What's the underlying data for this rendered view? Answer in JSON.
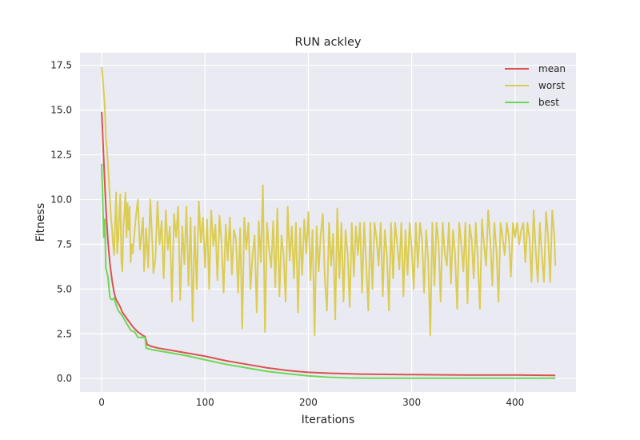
{
  "chart_data": {
    "type": "line",
    "title": "RUN ackley",
    "xlabel": "Iterations",
    "ylabel": "Fitness",
    "xlim": [
      -21,
      459
    ],
    "ylim": [
      -0.75,
      18.2
    ],
    "xticks": [
      0,
      100,
      200,
      300,
      400
    ],
    "yticks": [
      0.0,
      2.5,
      5.0,
      7.5,
      10.0,
      12.5,
      15.0,
      17.5
    ],
    "ytick_labels": [
      "0.0",
      "2.5",
      "5.0",
      "7.5",
      "10.0",
      "12.5",
      "15.0",
      "17.5"
    ],
    "grid": true,
    "legend_position": "top-right",
    "n_points": 440,
    "series": [
      {
        "name": "mean",
        "color": "#d9534f",
        "points": [
          [
            0,
            14.9
          ],
          [
            2,
            12.2
          ],
          [
            4,
            9.6
          ],
          [
            6,
            7.7
          ],
          [
            8,
            6.4
          ],
          [
            10,
            5.5
          ],
          [
            12,
            4.8
          ],
          [
            14,
            4.4
          ],
          [
            16,
            4.2
          ],
          [
            18,
            4.0
          ],
          [
            20,
            3.7
          ],
          [
            25,
            3.3
          ],
          [
            30,
            2.9
          ],
          [
            35,
            2.6
          ],
          [
            40,
            2.4
          ],
          [
            42,
            2.35
          ],
          [
            44,
            1.9
          ],
          [
            48,
            1.8
          ],
          [
            55,
            1.7
          ],
          [
            70,
            1.55
          ],
          [
            80,
            1.45
          ],
          [
            100,
            1.25
          ],
          [
            120,
            1.0
          ],
          [
            140,
            0.8
          ],
          [
            160,
            0.6
          ],
          [
            180,
            0.45
          ],
          [
            200,
            0.35
          ],
          [
            220,
            0.3
          ],
          [
            250,
            0.25
          ],
          [
            300,
            0.22
          ],
          [
            350,
            0.2
          ],
          [
            400,
            0.2
          ],
          [
            439,
            0.18
          ]
        ]
      },
      {
        "name": "worst",
        "color": "#dbcc52",
        "points": [
          [
            0,
            17.4
          ],
          [
            1,
            16.8
          ],
          [
            2,
            16.0
          ],
          [
            3,
            15.2
          ],
          [
            4,
            13.5
          ],
          [
            5,
            12.9
          ],
          [
            6,
            12.0
          ],
          [
            7,
            11.0
          ],
          [
            8,
            10.0
          ],
          [
            9,
            9.0
          ],
          [
            10,
            8.4
          ],
          [
            11,
            7.5
          ],
          [
            12,
            6.9
          ],
          [
            13,
            8.8
          ],
          [
            14,
            10.4
          ],
          [
            15,
            7.0
          ],
          [
            16,
            7.8
          ],
          [
            17,
            9.2
          ],
          [
            18,
            10.3
          ],
          [
            19,
            6.6
          ],
          [
            20,
            6.0
          ],
          [
            21,
            8.5
          ],
          [
            22,
            9.2
          ],
          [
            23,
            10.4
          ],
          [
            24,
            7.9
          ],
          [
            25,
            9.8
          ],
          [
            26,
            8.3
          ],
          [
            27,
            9.6
          ],
          [
            28,
            6.5
          ],
          [
            29,
            7.5
          ],
          [
            30,
            7.0
          ],
          [
            33,
            9.0
          ],
          [
            35,
            10.0
          ],
          [
            37,
            7.2
          ],
          [
            40,
            9.0
          ],
          [
            41,
            6.0
          ],
          [
            43,
            8.4
          ],
          [
            45,
            6.2
          ],
          [
            47,
            10.0
          ],
          [
            49,
            7.6
          ],
          [
            50,
            5.9
          ],
          [
            52,
            6.7
          ],
          [
            54,
            9.9
          ],
          [
            56,
            7.5
          ],
          [
            58,
            8.8
          ],
          [
            60,
            5.6
          ],
          [
            62,
            9.4
          ],
          [
            64,
            7.2
          ],
          [
            66,
            8.5
          ],
          [
            68,
            4.3
          ],
          [
            70,
            9.2
          ],
          [
            72,
            7.9
          ],
          [
            74,
            9.6
          ],
          [
            76,
            4.4
          ],
          [
            78,
            8.5
          ],
          [
            80,
            6.4
          ],
          [
            82,
            9.6
          ],
          [
            84,
            5.2
          ],
          [
            86,
            9.0
          ],
          [
            88,
            3.2
          ],
          [
            90,
            8.5
          ],
          [
            92,
            5.0
          ],
          [
            94,
            9.9
          ],
          [
            96,
            7.6
          ],
          [
            98,
            9.0
          ],
          [
            100,
            6.2
          ],
          [
            102,
            8.9
          ],
          [
            104,
            5.0
          ],
          [
            106,
            9.4
          ],
          [
            108,
            7.4
          ],
          [
            110,
            8.6
          ],
          [
            112,
            5.5
          ],
          [
            114,
            9.1
          ],
          [
            116,
            7.6
          ],
          [
            118,
            4.8
          ],
          [
            120,
            8.6
          ],
          [
            122,
            6.6
          ],
          [
            124,
            9.0
          ],
          [
            126,
            5.8
          ],
          [
            128,
            8.3
          ],
          [
            130,
            7.8
          ],
          [
            132,
            4.8
          ],
          [
            134,
            8.4
          ],
          [
            136,
            2.8
          ],
          [
            138,
            9.0
          ],
          [
            140,
            7.2
          ],
          [
            142,
            8.7
          ],
          [
            144,
            5.0
          ],
          [
            146,
            6.9
          ],
          [
            148,
            8.0
          ],
          [
            150,
            3.7
          ],
          [
            152,
            8.8
          ],
          [
            154,
            6.5
          ],
          [
            156,
            10.8
          ],
          [
            158,
            2.6
          ],
          [
            160,
            8.7
          ],
          [
            162,
            7.2
          ],
          [
            164,
            6.2
          ],
          [
            166,
            8.8
          ],
          [
            168,
            5.1
          ],
          [
            170,
            9.5
          ],
          [
            172,
            4.6
          ],
          [
            174,
            8.0
          ],
          [
            176,
            6.9
          ],
          [
            178,
            4.3
          ],
          [
            180,
            9.6
          ],
          [
            182,
            6.6
          ],
          [
            184,
            8.5
          ],
          [
            186,
            5.6
          ],
          [
            188,
            8.7
          ],
          [
            190,
            3.7
          ],
          [
            192,
            8.4
          ],
          [
            194,
            5.8
          ],
          [
            196,
            8.9
          ],
          [
            198,
            7.0
          ],
          [
            200,
            9.3
          ],
          [
            202,
            5.5
          ],
          [
            204,
            8.3
          ],
          [
            206,
            2.4
          ],
          [
            208,
            8.5
          ],
          [
            210,
            6.0
          ],
          [
            212,
            8.1
          ],
          [
            214,
            9.2
          ],
          [
            216,
            5.5
          ],
          [
            218,
            3.8
          ],
          [
            220,
            8.7
          ],
          [
            222,
            6.3
          ],
          [
            224,
            8.1
          ],
          [
            226,
            3.3
          ],
          [
            228,
            9.5
          ],
          [
            230,
            5.6
          ],
          [
            232,
            8.7
          ],
          [
            234,
            4.3
          ],
          [
            236,
            8.3
          ],
          [
            238,
            7.0
          ],
          [
            240,
            4.0
          ],
          [
            242,
            8.7
          ],
          [
            244,
            5.7
          ],
          [
            246,
            8.5
          ],
          [
            248,
            6.9
          ],
          [
            250,
            8.7
          ],
          [
            252,
            4.8
          ],
          [
            254,
            8.7
          ],
          [
            256,
            6.4
          ],
          [
            258,
            3.8
          ],
          [
            260,
            8.7
          ],
          [
            262,
            5.0
          ],
          [
            264,
            8.7
          ],
          [
            266,
            7.8
          ],
          [
            268,
            6.3
          ],
          [
            270,
            8.7
          ],
          [
            272,
            4.6
          ],
          [
            274,
            8.3
          ],
          [
            276,
            6.9
          ],
          [
            278,
            3.8
          ],
          [
            280,
            8.7
          ],
          [
            282,
            5.6
          ],
          [
            284,
            8.7
          ],
          [
            286,
            7.5
          ],
          [
            288,
            6.1
          ],
          [
            290,
            8.7
          ],
          [
            292,
            4.6
          ],
          [
            294,
            8.3
          ],
          [
            296,
            5.8
          ],
          [
            298,
            8.7
          ],
          [
            300,
            7.2
          ],
          [
            302,
            5.0
          ],
          [
            304,
            8.7
          ],
          [
            306,
            6.2
          ],
          [
            308,
            8.7
          ],
          [
            310,
            7.8
          ],
          [
            312,
            4.8
          ],
          [
            314,
            8.3
          ],
          [
            316,
            6.6
          ],
          [
            318,
            2.4
          ],
          [
            320,
            8.7
          ],
          [
            322,
            5.2
          ],
          [
            324,
            8.7
          ],
          [
            326,
            7.6
          ],
          [
            328,
            4.3
          ],
          [
            330,
            8.7
          ],
          [
            332,
            7.0
          ],
          [
            334,
            6.3
          ],
          [
            336,
            8.7
          ],
          [
            338,
            5.3
          ],
          [
            340,
            8.3
          ],
          [
            342,
            6.9
          ],
          [
            344,
            3.9
          ],
          [
            346,
            8.7
          ],
          [
            348,
            7.5
          ],
          [
            350,
            6.0
          ],
          [
            352,
            8.7
          ],
          [
            354,
            4.2
          ],
          [
            356,
            8.6
          ],
          [
            358,
            7.8
          ],
          [
            360,
            5.6
          ],
          [
            362,
            8.7
          ],
          [
            364,
            6.6
          ],
          [
            366,
            3.9
          ],
          [
            368,
            8.9
          ],
          [
            370,
            7.5
          ],
          [
            372,
            6.3
          ],
          [
            374,
            9.4
          ],
          [
            376,
            7.8
          ],
          [
            378,
            5.2
          ],
          [
            380,
            8.7
          ],
          [
            382,
            7.2
          ],
          [
            384,
            4.3
          ],
          [
            386,
            8.7
          ],
          [
            388,
            7.9
          ],
          [
            390,
            6.9
          ],
          [
            392,
            8.7
          ],
          [
            394,
            7.9
          ],
          [
            396,
            5.7
          ],
          [
            398,
            8.7
          ],
          [
            400,
            7.9
          ],
          [
            402,
            8.7
          ],
          [
            404,
            7.5
          ],
          [
            406,
            8.3
          ],
          [
            408,
            8.7
          ],
          [
            410,
            6.5
          ],
          [
            412,
            8.7
          ],
          [
            414,
            7.8
          ],
          [
            416,
            5.4
          ],
          [
            418,
            9.4
          ],
          [
            420,
            7.2
          ],
          [
            422,
            5.4
          ],
          [
            424,
            8.7
          ],
          [
            426,
            6.9
          ],
          [
            428,
            5.4
          ],
          [
            430,
            9.3
          ],
          [
            432,
            8.0
          ],
          [
            434,
            5.4
          ],
          [
            436,
            9.4
          ],
          [
            438,
            8.0
          ],
          [
            439,
            6.3
          ]
        ]
      },
      {
        "name": "best",
        "color": "#6cd854",
        "points": [
          [
            0,
            12.0
          ],
          [
            2,
            7.9
          ],
          [
            3,
            8.9
          ],
          [
            4,
            6.2
          ],
          [
            6,
            5.7
          ],
          [
            8,
            4.5
          ],
          [
            10,
            4.4
          ],
          [
            12,
            4.5
          ],
          [
            14,
            4.1
          ],
          [
            16,
            3.8
          ],
          [
            20,
            3.5
          ],
          [
            24,
            3.1
          ],
          [
            28,
            2.7
          ],
          [
            32,
            2.6
          ],
          [
            35,
            2.3
          ],
          [
            40,
            2.3
          ],
          [
            42,
            2.3
          ],
          [
            43,
            1.7
          ],
          [
            50,
            1.6
          ],
          [
            60,
            1.5
          ],
          [
            80,
            1.3
          ],
          [
            100,
            1.05
          ],
          [
            120,
            0.8
          ],
          [
            140,
            0.6
          ],
          [
            160,
            0.4
          ],
          [
            180,
            0.27
          ],
          [
            200,
            0.15
          ],
          [
            220,
            0.07
          ],
          [
            240,
            0.03
          ],
          [
            260,
            0.02
          ],
          [
            300,
            0.02
          ],
          [
            350,
            0.02
          ],
          [
            400,
            0.02
          ],
          [
            439,
            0.02
          ]
        ]
      }
    ]
  }
}
